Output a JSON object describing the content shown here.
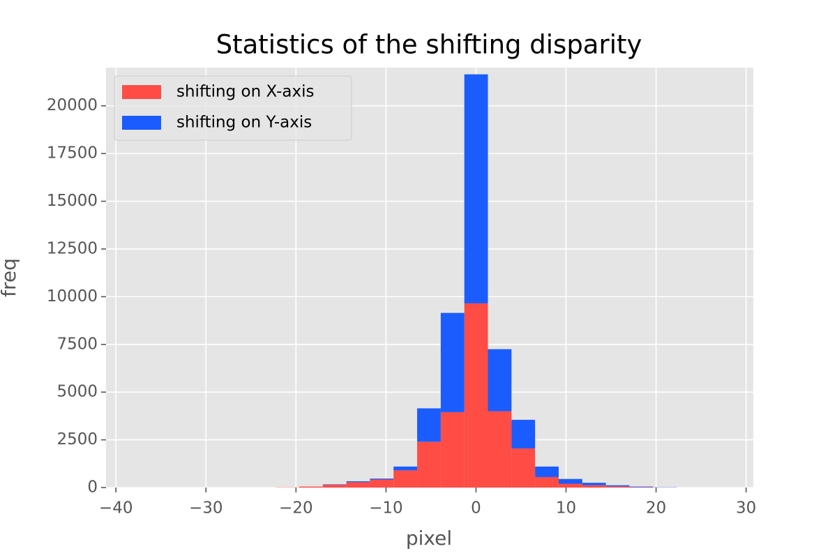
{
  "chart_data": {
    "type": "histogram",
    "title": "Statistics of the shifting disparity",
    "x_label": "pixel",
    "y_label": "freq",
    "bins": [
      -37.98,
      -35.36,
      -32.74,
      -30.12,
      -27.5,
      -24.88,
      -22.26,
      -19.64,
      -17.02,
      -14.4,
      -11.78,
      -9.16,
      -6.54,
      -3.92,
      -1.3,
      1.32,
      3.94,
      6.56,
      9.18,
      11.8,
      14.42,
      17.04,
      19.66,
      22.28,
      24.9,
      27.52
    ],
    "stacked": true,
    "series": [
      {
        "name": "shifting on X-axis",
        "color": "#ff4c45",
        "values": [
          0,
          0,
          0,
          0,
          0,
          0,
          10,
          50,
          150,
          280,
          420,
          900,
          2400,
          3950,
          9650,
          4000,
          2050,
          550,
          200,
          120,
          60,
          20,
          5,
          0,
          0
        ]
      },
      {
        "name": "shifting on Y-axis",
        "color": "#1b5cff",
        "values": [
          0,
          0,
          0,
          0,
          0,
          0,
          0,
          0,
          20,
          50,
          50,
          200,
          1750,
          5200,
          12000,
          3250,
          1500,
          550,
          250,
          130,
          60,
          30,
          10,
          0,
          0
        ]
      }
    ],
    "xlim": [
      -41.1,
      30.8
    ],
    "ylim": [
      0,
      22000
    ],
    "xticks": [
      {
        "value": -40,
        "label": "−40"
      },
      {
        "value": -30,
        "label": "−30"
      },
      {
        "value": -20,
        "label": "−20"
      },
      {
        "value": -10,
        "label": "−10"
      },
      0,
      10,
      20,
      30
    ],
    "yticks": [
      0,
      2500,
      5000,
      7500,
      10000,
      12500,
      15000,
      17500,
      20000
    ],
    "grid": true,
    "legend": "upper left"
  }
}
